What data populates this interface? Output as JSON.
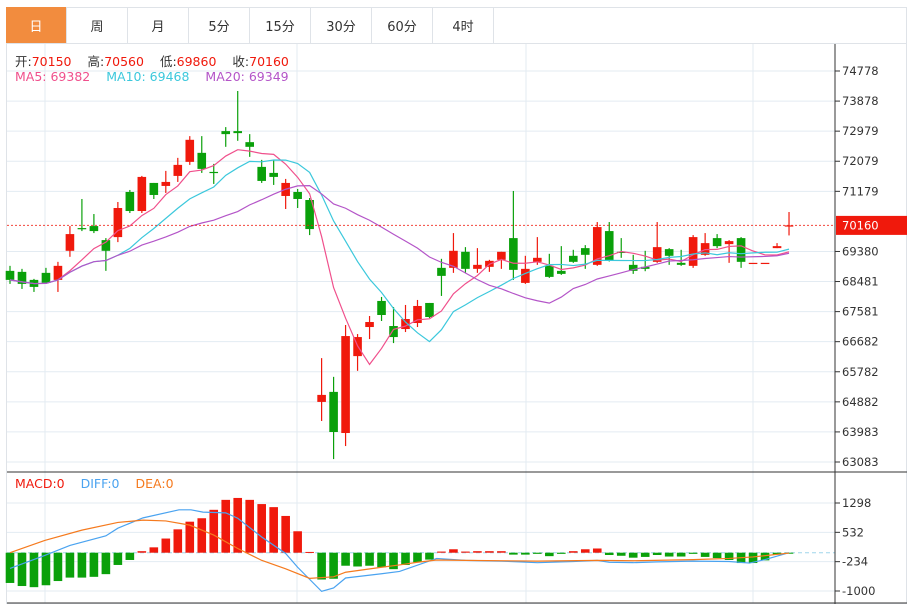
{
  "tabs": [
    {
      "label": "日",
      "active": true
    },
    {
      "label": "周"
    },
    {
      "label": "月"
    },
    {
      "label": "5分"
    },
    {
      "label": "15分"
    },
    {
      "label": "30分"
    },
    {
      "label": "60分"
    },
    {
      "label": "4时"
    }
  ],
  "ohlc": {
    "open_label": "开:",
    "open": "70150",
    "high_label": "高:",
    "high": "70560",
    "low_label": "低:",
    "low": "69860",
    "close_label": "收:",
    "close": "70160"
  },
  "ma": {
    "ma5": "MA5: 69382",
    "ma10": "MA10: 69468",
    "ma20": "MA20: 69349"
  },
  "macd_legend": {
    "macd": "MACD:0",
    "diff": "DIFF:0",
    "dea": "DEA:0"
  },
  "colors": {
    "up": "#f0190c",
    "down": "#0aa00a",
    "ma5": "#f0508c",
    "ma10": "#3cc8dc",
    "ma20": "#b455c8",
    "diff": "#4aa3f0",
    "dea": "#f57a1e",
    "accent": "#f28c3e"
  },
  "chart_data": {
    "type": "candlestick",
    "price_axis": {
      "ticks": [
        "74778",
        "73878",
        "72979",
        "72079",
        "71179",
        "69380",
        "68481",
        "67581",
        "66682",
        "65782",
        "64882",
        "63983",
        "63083"
      ],
      "range": [
        63083,
        74778
      ],
      "current_price": "70160"
    },
    "candles": [
      [
        68800,
        68950,
        68410,
        68530
      ],
      [
        68770,
        68860,
        68260,
        68410
      ],
      [
        68530,
        68560,
        68170,
        68320
      ],
      [
        68740,
        68890,
        68410,
        68440
      ],
      [
        68530,
        69070,
        68170,
        68950
      ],
      [
        69400,
        70140,
        69220,
        69900
      ],
      [
        70080,
        70950,
        69990,
        70050
      ],
      [
        70140,
        70500,
        69930,
        69990
      ],
      [
        69720,
        69780,
        68800,
        69400
      ],
      [
        69810,
        70860,
        69660,
        70680
      ],
      [
        71160,
        71220,
        70530,
        70590
      ],
      [
        70590,
        71640,
        70530,
        71610
      ],
      [
        71430,
        71430,
        70950,
        71070
      ],
      [
        71340,
        71790,
        71130,
        71460
      ],
      [
        71640,
        72180,
        71460,
        71970
      ],
      [
        72060,
        72830,
        71970,
        72720
      ],
      [
        72330,
        72830,
        71730,
        71850
      ],
      [
        71760,
        72000,
        71400,
        71740
      ],
      [
        72980,
        73100,
        72510,
        72890
      ],
      [
        72980,
        74180,
        72690,
        72920
      ],
      [
        72650,
        72890,
        72210,
        72510
      ],
      [
        71910,
        72120,
        71430,
        71490
      ],
      [
        71730,
        72120,
        71370,
        71610
      ],
      [
        71040,
        71550,
        70650,
        71430
      ],
      [
        71160,
        71250,
        70680,
        70950
      ],
      [
        70920,
        70980,
        69870,
        70050
      ],
      [
        64880,
        66190,
        64310,
        65090
      ],
      [
        65180,
        65630,
        63170,
        63980
      ],
      [
        63950,
        67180,
        63560,
        66850
      ],
      [
        66250,
        66910,
        65810,
        66820
      ],
      [
        67120,
        67450,
        66760,
        67270
      ],
      [
        67900,
        68020,
        67300,
        67480
      ],
      [
        67150,
        67720,
        66640,
        66820
      ],
      [
        67060,
        67780,
        66970,
        67360
      ],
      [
        67240,
        67930,
        67120,
        67750
      ],
      [
        67840,
        67840,
        67390,
        67420
      ],
      [
        68890,
        69160,
        68050,
        68650
      ],
      [
        68890,
        69930,
        68740,
        69400
      ],
      [
        69370,
        69510,
        68740,
        68860
      ],
      [
        68860,
        69480,
        68740,
        68980
      ],
      [
        68920,
        69130,
        68770,
        69100
      ],
      [
        69130,
        69370,
        68860,
        69370
      ],
      [
        69780,
        71190,
        68530,
        68830
      ],
      [
        68440,
        69250,
        68410,
        68860
      ],
      [
        69070,
        69810,
        68980,
        69190
      ],
      [
        68950,
        69310,
        68590,
        68620
      ],
      [
        68800,
        69540,
        68680,
        68710
      ],
      [
        69250,
        69430,
        69040,
        69070
      ],
      [
        69480,
        69570,
        68860,
        69280
      ],
      [
        68980,
        70260,
        68950,
        70110
      ],
      [
        69990,
        70260,
        69080,
        69100
      ],
      [
        69370,
        69780,
        69190,
        69340
      ],
      [
        68980,
        69280,
        68710,
        68800
      ],
      [
        68920,
        69400,
        68790,
        68860
      ],
      [
        69070,
        70260,
        69040,
        69510
      ],
      [
        69450,
        69480,
        68980,
        69250
      ],
      [
        69040,
        69430,
        68950,
        68980
      ],
      [
        68950,
        69870,
        68890,
        69810
      ],
      [
        69280,
        69930,
        69250,
        69630
      ],
      [
        69780,
        69900,
        69480,
        69540
      ],
      [
        69600,
        69720,
        69040,
        69690
      ],
      [
        69780,
        69810,
        68890,
        69070
      ],
      [
        69040,
        69040,
        69040,
        69040
      ],
      [
        69040,
        69040,
        69040,
        69040
      ],
      [
        69480,
        69630,
        69480,
        69540
      ],
      [
        70150,
        70560,
        69860,
        70160
      ]
    ],
    "macd_axis": {
      "ticks": [
        "1298",
        "532",
        "-234",
        "-1000"
      ],
      "range": [
        -1000,
        1298
      ]
    },
    "macd_hist": [
      -790,
      -870,
      -900,
      -850,
      -740,
      -650,
      -650,
      -630,
      -560,
      -320,
      -190,
      40,
      140,
      370,
      610,
      810,
      900,
      1120,
      1380,
      1430,
      1380,
      1270,
      1190,
      960,
      560,
      20,
      -700,
      -680,
      -340,
      -360,
      -340,
      -380,
      -430,
      -320,
      -250,
      -180,
      30,
      90,
      30,
      40,
      40,
      40,
      -50,
      -50,
      -30,
      -90,
      -30,
      40,
      90,
      110,
      -60,
      -80,
      -130,
      -110,
      -60,
      -100,
      -100,
      -30,
      -110,
      -140,
      -190,
      -270,
      -270,
      -200,
      -50,
      -10
    ],
    "diff": [
      [
        0,
        -410
      ],
      [
        2.9,
        -70
      ],
      [
        5,
        190
      ],
      [
        8,
        440
      ],
      [
        9,
        640
      ],
      [
        11.1,
        910
      ],
      [
        14.1,
        1120
      ],
      [
        15.1,
        1120
      ],
      [
        16.1,
        1060
      ],
      [
        18,
        1040
      ],
      [
        19,
        900
      ],
      [
        21,
        410
      ],
      [
        23,
        -20
      ],
      [
        24,
        -380
      ],
      [
        26,
        -1010
      ],
      [
        27,
        -920
      ],
      [
        28,
        -660
      ],
      [
        31,
        -550
      ],
      [
        32.5,
        -490
      ],
      [
        35.6,
        -150
      ],
      [
        38,
        -200
      ],
      [
        41,
        -220
      ],
      [
        44,
        -260
      ],
      [
        47,
        -230
      ],
      [
        49,
        -200
      ],
      [
        50,
        -250
      ],
      [
        52,
        -260
      ],
      [
        54,
        -240
      ],
      [
        57,
        -220
      ],
      [
        60,
        -230
      ],
      [
        61.7,
        -270
      ],
      [
        63,
        -180
      ],
      [
        65,
        0
      ]
    ],
    "dea": [
      [
        0,
        0
      ],
      [
        2.9,
        320
      ],
      [
        6,
        590
      ],
      [
        9,
        790
      ],
      [
        11.1,
        850
      ],
      [
        13,
        830
      ],
      [
        15,
        720
      ],
      [
        17,
        460
      ],
      [
        19,
        110
      ],
      [
        21,
        -200
      ],
      [
        23,
        -420
      ],
      [
        25,
        -670
      ],
      [
        27,
        -630
      ],
      [
        28,
        -510
      ],
      [
        31,
        -380
      ],
      [
        34,
        -250
      ],
      [
        32.5,
        -320
      ],
      [
        35.6,
        -190
      ],
      [
        38,
        -200
      ],
      [
        44,
        -220
      ],
      [
        49,
        -200
      ],
      [
        52,
        -210
      ],
      [
        57,
        -180
      ],
      [
        60,
        -150
      ],
      [
        62,
        -110
      ],
      [
        65,
        -10
      ]
    ]
  }
}
